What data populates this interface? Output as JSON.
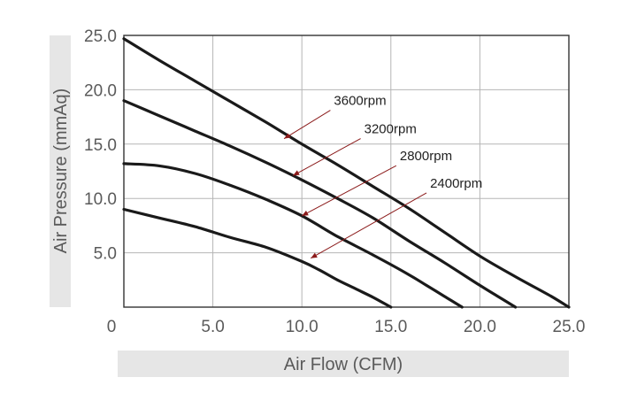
{
  "chart_data": {
    "type": "line",
    "title": "",
    "xlabel": "Air Flow (CFM)",
    "ylabel": "Air Pressure (mmAq)",
    "xlim": [
      0,
      25
    ],
    "ylim": [
      0,
      25
    ],
    "x_ticks": [
      "0",
      "5.0",
      "10.0",
      "15.0",
      "20.0",
      "25.0"
    ],
    "y_ticks": [
      "5.0",
      "10.0",
      "15.0",
      "20.0",
      "25.0"
    ],
    "grid": true,
    "line_color": "#1a1a1a",
    "annotation_color": "#8b1a1a",
    "label_band_color": "#e6e6e6",
    "series": [
      {
        "name": "3600rpm",
        "x": [
          0,
          2,
          4,
          6,
          8,
          10,
          12,
          14,
          16,
          18,
          20,
          22,
          24,
          25
        ],
        "y": [
          24.7,
          22.7,
          20.8,
          18.9,
          17.0,
          15.0,
          13.1,
          11.1,
          9.1,
          6.9,
          4.7,
          2.8,
          1.0,
          0.0
        ]
      },
      {
        "name": "3200rpm",
        "x": [
          0,
          2,
          4,
          6,
          8,
          10,
          12,
          14,
          16,
          18,
          20,
          21,
          22
        ],
        "y": [
          19.0,
          17.6,
          16.2,
          14.8,
          13.3,
          11.7,
          10.0,
          8.2,
          6.1,
          4.1,
          2.0,
          1.0,
          0.0
        ]
      },
      {
        "name": "2800rpm",
        "x": [
          0,
          2,
          4,
          6,
          8,
          10,
          12,
          14,
          16,
          17,
          18,
          19
        ],
        "y": [
          13.2,
          13.0,
          12.3,
          11.2,
          9.9,
          8.4,
          6.5,
          4.8,
          3.0,
          2.0,
          1.0,
          0.0
        ]
      },
      {
        "name": "2400rpm",
        "x": [
          0,
          2,
          4,
          6,
          8,
          10,
          11,
          12,
          13,
          14,
          15
        ],
        "y": [
          9.0,
          8.2,
          7.4,
          6.4,
          5.5,
          4.2,
          3.4,
          2.5,
          1.7,
          0.9,
          0.0
        ]
      }
    ],
    "annotations": [
      {
        "label": "3600rpm",
        "text_x": 11.8,
        "text_y": 18.6,
        "point_x": 9.0,
        "point_y": 15.5
      },
      {
        "label": "3200rpm",
        "text_x": 13.5,
        "text_y": 16.0,
        "point_x": 9.5,
        "point_y": 12.1
      },
      {
        "label": "2800rpm",
        "text_x": 15.5,
        "text_y": 13.5,
        "point_x": 10.0,
        "point_y": 8.4
      },
      {
        "label": "2400rpm",
        "text_x": 17.2,
        "text_y": 11.0,
        "point_x": 10.5,
        "point_y": 4.5
      }
    ]
  }
}
